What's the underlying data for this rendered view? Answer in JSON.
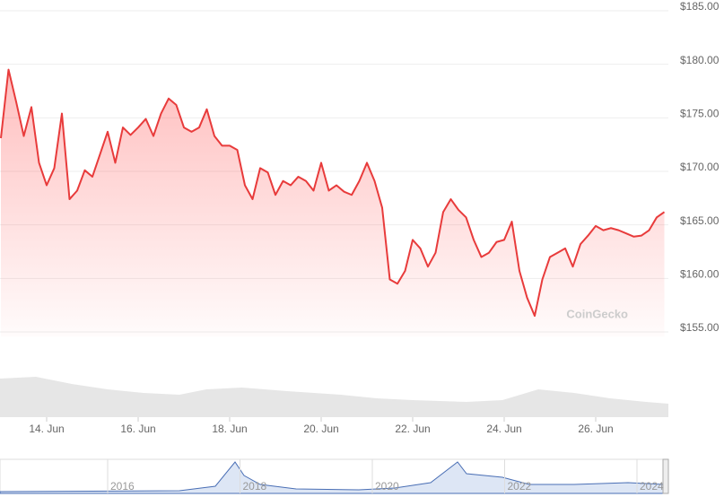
{
  "chart_data": {
    "type": "line",
    "categories": [
      null,
      null,
      null,
      null,
      null,
      null,
      "14. Jun",
      null,
      null,
      null,
      null,
      null,
      null,
      null,
      null,
      null,
      null,
      null,
      "16. Jun",
      null,
      null,
      null,
      null,
      null,
      null,
      null,
      null,
      null,
      null,
      null,
      "18. Jun",
      null,
      null,
      null,
      null,
      null,
      null,
      null,
      null,
      null,
      null,
      null,
      "20. Jun",
      null,
      null,
      null,
      null,
      null,
      null,
      null,
      null,
      null,
      null,
      null,
      "22. Jun",
      null,
      null,
      null,
      null,
      null,
      null,
      null,
      null,
      null,
      null,
      null,
      "24. Jun",
      null,
      null,
      null,
      null,
      null,
      null,
      null,
      null,
      null,
      null,
      null,
      "26. Jun",
      null,
      null,
      null,
      null,
      null,
      null,
      null,
      null,
      null
    ],
    "series": [
      {
        "color": "#e83b3b",
        "values": [
          173.1,
          179.5,
          176.5,
          173.3,
          176,
          170.8,
          168.7,
          170.3,
          175.4,
          167.4,
          168.2,
          170.1,
          169.5,
          171.6,
          173.7,
          170.8,
          174.1,
          173.4,
          174.1,
          174.9,
          173.3,
          175.4,
          176.8,
          176.2,
          174.1,
          173.7,
          174.1,
          175.8,
          173.3,
          172.4,
          172.4,
          172,
          168.7,
          167.4,
          170.3,
          169.9,
          167.8,
          169.1,
          168.7,
          169.5,
          169.1,
          168.2,
          170.8,
          168.2,
          168.7,
          168.1,
          167.8,
          169.1,
          170.8,
          169.1,
          166.6,
          159.9,
          159.5,
          160.7,
          163.6,
          162.8,
          161.1,
          162.4,
          166.2,
          167.4,
          166.4,
          165.7,
          163.6,
          162,
          162.4,
          163.4,
          163.6,
          165.3,
          160.7,
          158.2,
          156.5,
          159.9,
          162,
          162.4,
          162.8,
          161.1,
          163.2,
          164,
          164.9,
          164.5,
          164.7,
          164.5,
          164.2,
          163.9,
          164,
          164.5,
          165.7,
          166.2
        ]
      }
    ],
    "ylim": [
      155,
      185
    ],
    "yticks": [
      {
        "value": 155,
        "label": "$155.00"
      },
      {
        "value": 160,
        "label": "$160.00"
      },
      {
        "value": 165,
        "label": "$165.00"
      },
      {
        "value": 170,
        "label": "$170.00"
      },
      {
        "value": 175,
        "label": "$175.00"
      },
      {
        "value": 180,
        "label": "$180.00"
      },
      {
        "value": 185,
        "label": "$185.00"
      }
    ],
    "grid": true,
    "watermark": "CoinGecko",
    "navigator_labels": [
      "2016",
      "2018",
      "2020",
      "2022",
      "2024"
    ]
  }
}
